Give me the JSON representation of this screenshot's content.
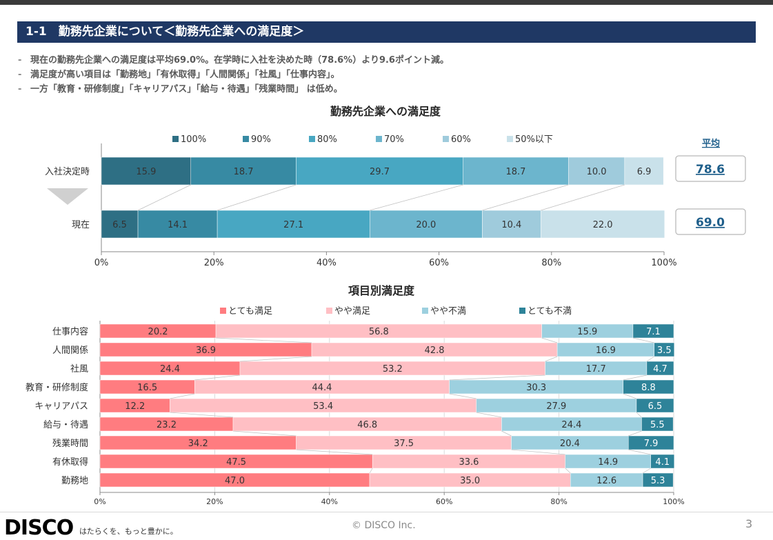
{
  "header": {
    "title": "1-1　勤務先企業について＜勤務先企業への満足度＞"
  },
  "bullets": [
    "現在の勤務先企業への満足度は平均69.0%。在学時に入社を決めた時（78.6%）より9.6ポイント減。",
    "満足度が高い項目は「勤務地」「有休取得」「人間関係」「社風」「仕事内容」。",
    "一方「教育・研修制度」「キャリアパス」「給与・待遇」「残業時間」 は低め。"
  ],
  "bullet_marker": "-",
  "footer": {
    "logo": "DISCO",
    "tagline": "はたらくを、もっと豊かに。",
    "copyright": "© DISCO Inc.",
    "page_number": "3"
  },
  "colors": {
    "title_band": "#1f3864",
    "avg_value": "#1f5f8b",
    "grid": "#d9d9d9"
  },
  "chart_data": [
    {
      "type": "bar",
      "orientation": "horizontal",
      "stacked": true,
      "title": "勤務先企業への満足度",
      "categories": [
        "入社決定時",
        "現在"
      ],
      "series": [
        {
          "name": "100%",
          "color": "#2e6f84",
          "values": [
            15.9,
            6.5
          ]
        },
        {
          "name": "90%",
          "color": "#378aa3",
          "values": [
            18.7,
            14.1
          ]
        },
        {
          "name": "80%",
          "color": "#48a7c2",
          "values": [
            29.7,
            27.1
          ]
        },
        {
          "name": "70%",
          "color": "#6cb5cd",
          "values": [
            18.7,
            20.0
          ]
        },
        {
          "name": "60%",
          "color": "#9fcbdc",
          "values": [
            10.0,
            10.4
          ]
        },
        {
          "name": "50%以下",
          "color": "#c9e1ea",
          "values": [
            6.9,
            22.0
          ]
        }
      ],
      "xlim": [
        0,
        100
      ],
      "ticks": [
        "0%",
        "20%",
        "40%",
        "60%",
        "80%",
        "100%"
      ],
      "average_label": "平均",
      "averages": [
        "78.6",
        "69.0"
      ],
      "legend_position": "top"
    },
    {
      "type": "bar",
      "orientation": "horizontal",
      "stacked": true,
      "title": "項目別満足度",
      "categories": [
        "仕事内容",
        "人間関係",
        "社風",
        "教育・研修制度",
        "キャリアパス",
        "給与・待遇",
        "残業時間",
        "有休取得",
        "勤務地"
      ],
      "series": [
        {
          "name": "とても満足",
          "color": "#ff7c80",
          "values": [
            20.2,
            36.9,
            24.4,
            16.5,
            12.2,
            23.2,
            34.2,
            47.5,
            47.0
          ]
        },
        {
          "name": "やや満足",
          "color": "#ffbfc4",
          "values": [
            56.8,
            42.8,
            53.2,
            44.4,
            53.4,
            46.8,
            37.5,
            33.6,
            35.0
          ]
        },
        {
          "name": "やや不満",
          "color": "#9dd0df",
          "values": [
            15.9,
            16.9,
            17.7,
            30.3,
            27.9,
            24.4,
            20.4,
            14.9,
            12.6
          ]
        },
        {
          "name": "とても不満",
          "color": "#2e8399",
          "values": [
            7.1,
            3.5,
            4.7,
            8.8,
            6.5,
            5.5,
            7.9,
            4.1,
            5.3
          ]
        }
      ],
      "xlim": [
        0,
        100
      ],
      "ticks": [
        "0%",
        "20%",
        "40%",
        "60%",
        "80%",
        "100%"
      ],
      "legend_position": "top"
    }
  ]
}
